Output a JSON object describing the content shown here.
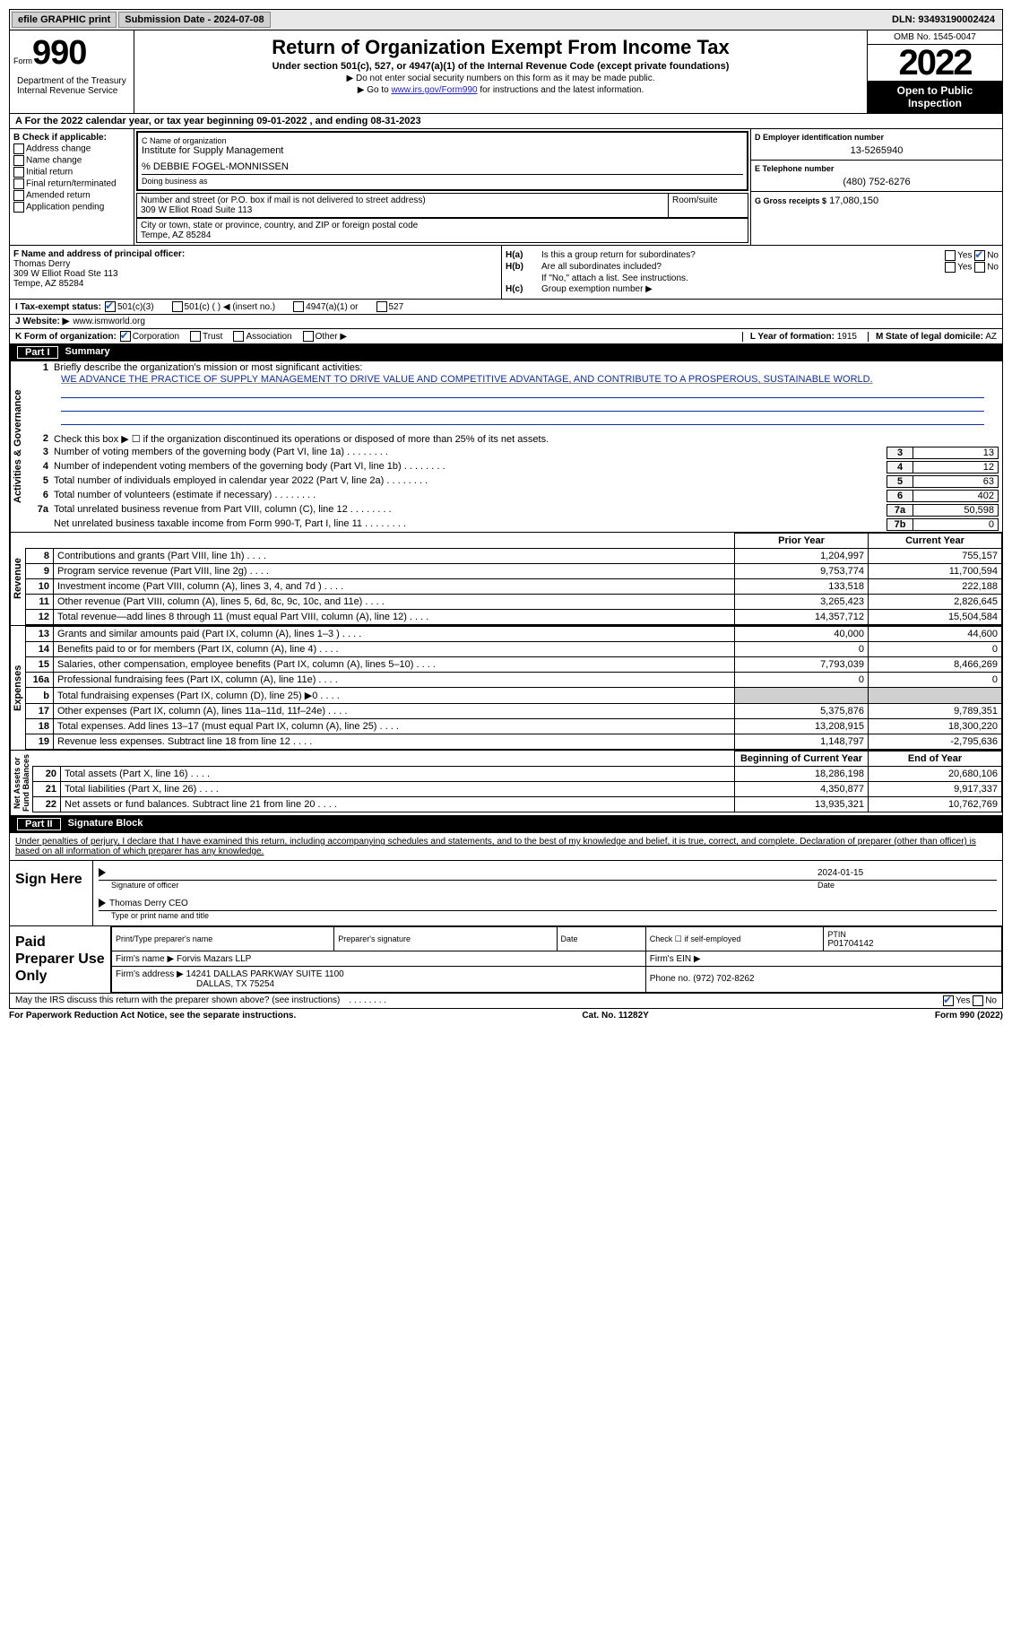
{
  "topbar": {
    "efile": "efile GRAPHIC print",
    "submission": "Submission Date - 2024-07-08",
    "dln": "DLN: 93493190002424"
  },
  "header": {
    "form_word": "Form",
    "form_num": "990",
    "title": "Return of Organization Exempt From Income Tax",
    "sub1": "Under section 501(c), 527, or 4947(a)(1) of the Internal Revenue Code (except private foundations)",
    "sub2a": "▶ Do not enter social security numbers on this form as it may be made public.",
    "sub2b": "▶ Go to ",
    "sub2link": "www.irs.gov/Form990",
    "sub2c": " for instructions and the latest information.",
    "omb": "OMB No. 1545-0047",
    "year": "2022",
    "open": "Open to Public Inspection",
    "dept": "Department of the Treasury\nInternal Revenue Service"
  },
  "lineA": "A  For the 2022 calendar year, or tax year beginning 09-01-2022    , and ending 08-31-2023",
  "colB": {
    "hdr": "B Check if applicable:",
    "items": [
      "Address change",
      "Name change",
      "Initial return",
      "Final return/terminated",
      "Amended return",
      "Application pending"
    ]
  },
  "colC": {
    "name_lbl": "C Name of organization",
    "name": "Institute for Supply Management",
    "careof": "% DEBBIE FOGEL-MONNISSEN",
    "dba_lbl": "Doing business as",
    "addr_lbl": "Number and street (or P.O. box if mail is not delivered to street address)",
    "addr": "309 W Elliot Road Suite 113",
    "room_lbl": "Room/suite",
    "city_lbl": "City or town, state or province, country, and ZIP or foreign postal code",
    "city": "Tempe, AZ   85284"
  },
  "colD": {
    "ein_lbl": "D Employer identification number",
    "ein": "13-5265940",
    "tel_lbl": "E Telephone number",
    "tel": "(480) 752-6276",
    "gross_lbl": "G Gross receipts $",
    "gross": "17,080,150"
  },
  "F": {
    "lbl": "F Name and address of principal officer:",
    "name": "Thomas Derry",
    "addr1": "309 W Elliot Road Ste 113",
    "addr2": "Tempe, AZ   85284"
  },
  "H": {
    "a_lbl": "H(a)",
    "a_txt": "Is this a group return for subordinates?",
    "b_lbl": "H(b)",
    "b_txt": "Are all subordinates included?",
    "b_note": "If \"No,\" attach a list. See instructions.",
    "c_lbl": "H(c)",
    "c_txt": "Group exemption number ▶"
  },
  "I": {
    "lbl": "I    Tax-exempt status:",
    "opts": [
      "501(c)(3)",
      "501(c) (  ) ◀ (insert no.)",
      "4947(a)(1) or",
      "527"
    ]
  },
  "J": {
    "lbl": "J   Website: ▶",
    "val": "www.ismworld.org"
  },
  "K": {
    "lbl": "K Form of organization:",
    "opts": [
      "Corporation",
      "Trust",
      "Association",
      "Other ▶"
    ]
  },
  "L": {
    "lbl": "L Year of formation:",
    "val": "1915"
  },
  "M": {
    "lbl": "M State of legal domicile:",
    "val": "AZ"
  },
  "part1": {
    "hdr_num": "Part I",
    "hdr_txt": "Summary",
    "line1_lbl": "1",
    "line1_txt": "Briefly describe the organization's mission or most significant activities:",
    "mission": "WE ADVANCE THE PRACTICE OF SUPPLY MANAGEMENT TO DRIVE VALUE AND COMPETITIVE ADVANTAGE, AND CONTRIBUTE TO A PROSPEROUS, SUSTAINABLE WORLD.",
    "line2_lbl": "2",
    "line2_txt": "Check this box ▶ ☐ if the organization discontinued its operations or disposed of more than 25% of its net assets.",
    "gov_label": "Activities & Governance",
    "gov_rows": [
      {
        "n": "3",
        "t": "Number of voting members of the governing body (Part VI, line 1a)",
        "box": "3",
        "v": "13"
      },
      {
        "n": "4",
        "t": "Number of independent voting members of the governing body (Part VI, line 1b)",
        "box": "4",
        "v": "12"
      },
      {
        "n": "5",
        "t": "Total number of individuals employed in calendar year 2022 (Part V, line 2a)",
        "box": "5",
        "v": "63"
      },
      {
        "n": "6",
        "t": "Total number of volunteers (estimate if necessary)",
        "box": "6",
        "v": "402"
      },
      {
        "n": "7a",
        "t": "Total unrelated business revenue from Part VIII, column (C), line 12",
        "box": "7a",
        "v": "50,598"
      },
      {
        "n": "",
        "t": "Net unrelated business taxable income from Form 990-T, Part I, line 11",
        "box": "7b",
        "v": "0"
      }
    ],
    "py_hdr": "Prior Year",
    "cy_hdr": "Current Year",
    "rev_label": "Revenue",
    "rev_rows": [
      {
        "n": "8",
        "t": "Contributions and grants (Part VIII, line 1h)",
        "py": "1,204,997",
        "cy": "755,157"
      },
      {
        "n": "9",
        "t": "Program service revenue (Part VIII, line 2g)",
        "py": "9,753,774",
        "cy": "11,700,594"
      },
      {
        "n": "10",
        "t": "Investment income (Part VIII, column (A), lines 3, 4, and 7d )",
        "py": "133,518",
        "cy": "222,188"
      },
      {
        "n": "11",
        "t": "Other revenue (Part VIII, column (A), lines 5, 6d, 8c, 9c, 10c, and 11e)",
        "py": "3,265,423",
        "cy": "2,826,645"
      },
      {
        "n": "12",
        "t": "Total revenue—add lines 8 through 11 (must equal Part VIII, column (A), line 12)",
        "py": "14,357,712",
        "cy": "15,504,584"
      }
    ],
    "exp_label": "Expenses",
    "exp_rows": [
      {
        "n": "13",
        "t": "Grants and similar amounts paid (Part IX, column (A), lines 1–3 )",
        "py": "40,000",
        "cy": "44,600"
      },
      {
        "n": "14",
        "t": "Benefits paid to or for members (Part IX, column (A), line 4)",
        "py": "0",
        "cy": "0"
      },
      {
        "n": "15",
        "t": "Salaries, other compensation, employee benefits (Part IX, column (A), lines 5–10)",
        "py": "7,793,039",
        "cy": "8,466,269"
      },
      {
        "n": "16a",
        "t": "Professional fundraising fees (Part IX, column (A), line 11e)",
        "py": "0",
        "cy": "0"
      },
      {
        "n": "b",
        "t": "Total fundraising expenses (Part IX, column (D), line 25) ▶0",
        "py": "",
        "cy": "",
        "shade": true
      },
      {
        "n": "17",
        "t": "Other expenses (Part IX, column (A), lines 11a–11d, 11f–24e)",
        "py": "5,375,876",
        "cy": "9,789,351"
      },
      {
        "n": "18",
        "t": "Total expenses. Add lines 13–17 (must equal Part IX, column (A), line 25)",
        "py": "13,208,915",
        "cy": "18,300,220"
      },
      {
        "n": "19",
        "t": "Revenue less expenses. Subtract line 18 from line 12",
        "py": "1,148,797",
        "cy": "-2,795,636"
      }
    ],
    "na_label": "Net Assets or\nFund Balances",
    "boy_hdr": "Beginning of Current Year",
    "eoy_hdr": "End of Year",
    "na_rows": [
      {
        "n": "20",
        "t": "Total assets (Part X, line 16)",
        "py": "18,286,198",
        "cy": "20,680,106"
      },
      {
        "n": "21",
        "t": "Total liabilities (Part X, line 26)",
        "py": "4,350,877",
        "cy": "9,917,337"
      },
      {
        "n": "22",
        "t": "Net assets or fund balances. Subtract line 21 from line 20",
        "py": "13,935,321",
        "cy": "10,762,769"
      }
    ]
  },
  "part2": {
    "hdr_num": "Part II",
    "hdr_txt": "Signature Block",
    "decl": "Under penalties of perjury, I declare that I have examined this return, including accompanying schedules and statements, and to the best of my knowledge and belief, it is true, correct, and complete. Declaration of preparer (other than officer) is based on all information of which preparer has any knowledge.",
    "sign_lbl": "Sign Here",
    "sig_officer": "Signature of officer",
    "date_lbl": "Date",
    "date_val": "2024-01-15",
    "name_title": "Thomas Derry CEO",
    "type_lbl": "Type or print name and title",
    "prep_lbl": "Paid Preparer Use Only",
    "pt_name_lbl": "Print/Type preparer's name",
    "pt_sig_lbl": "Preparer's signature",
    "pt_date_lbl": "Date",
    "pt_self_lbl": "Check ☐  if self-employed",
    "ptin_lbl": "PTIN",
    "ptin_val": "P01704142",
    "firm_name_lbl": "Firm's name    ▶",
    "firm_name": "Forvis Mazars LLP",
    "firm_ein_lbl": "Firm's EIN ▶",
    "firm_addr_lbl": "Firm's address ▶",
    "firm_addr1": "14241 DALLAS PARKWAY SUITE 1100",
    "firm_addr2": "DALLAS, TX   75254",
    "firm_phone_lbl": "Phone no.",
    "firm_phone": "(972) 702-8262",
    "discuss": "May the IRS discuss this return with the preparer shown above? (see instructions)"
  },
  "footer": {
    "paperwork": "For Paperwork Reduction Act Notice, see the separate instructions.",
    "cat": "Cat. No. 11282Y",
    "form": "Form 990 (2022)"
  }
}
